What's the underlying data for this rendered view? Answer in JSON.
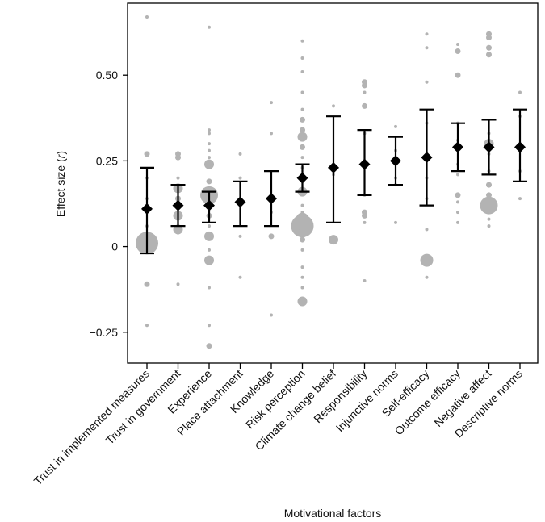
{
  "chart_data": {
    "type": "scatter",
    "title": "",
    "xlabel": "Motivational factors",
    "ylabel": {
      "prefix": "Effect size (",
      "symbol": "r",
      "suffix": ")"
    },
    "ylim": [
      -0.34,
      0.71
    ],
    "yticks": [
      -0.25,
      0,
      0.25,
      0.5
    ],
    "ytick_labels": [
      "−0.25",
      "0",
      "0.25",
      "0.50"
    ],
    "grid": false,
    "colors": {
      "summary": "#000000",
      "studies": "#b3b3b3"
    },
    "categories": [
      "Trust in implemented measures",
      "Trust in government",
      "Experience",
      "Place attachment",
      "Knowledge",
      "Risk perception",
      "Climate change belief",
      "Responsibility",
      "Injunctive norms",
      "Self-efficacy",
      "Outcome efficacy",
      "Negative affect",
      "Descriptive norms"
    ],
    "summary": [
      {
        "estimate": 0.11,
        "ci_low": -0.02,
        "ci_high": 0.23
      },
      {
        "estimate": 0.12,
        "ci_low": 0.06,
        "ci_high": 0.18
      },
      {
        "estimate": 0.12,
        "ci_low": 0.07,
        "ci_high": 0.16
      },
      {
        "estimate": 0.13,
        "ci_low": 0.06,
        "ci_high": 0.19
      },
      {
        "estimate": 0.14,
        "ci_low": 0.06,
        "ci_high": 0.22
      },
      {
        "estimate": 0.2,
        "ci_low": 0.16,
        "ci_high": 0.24
      },
      {
        "estimate": 0.23,
        "ci_low": 0.07,
        "ci_high": 0.38
      },
      {
        "estimate": 0.24,
        "ci_low": 0.15,
        "ci_high": 0.34
      },
      {
        "estimate": 0.25,
        "ci_low": 0.18,
        "ci_high": 0.32
      },
      {
        "estimate": 0.26,
        "ci_low": 0.12,
        "ci_high": 0.4
      },
      {
        "estimate": 0.29,
        "ci_low": 0.22,
        "ci_high": 0.36
      },
      {
        "estimate": 0.29,
        "ci_low": 0.21,
        "ci_high": 0.37
      },
      {
        "estimate": 0.29,
        "ci_low": 0.19,
        "ci_high": 0.4
      }
    ],
    "studies": [
      [
        {
          "r": 0.67,
          "w": 1
        },
        {
          "r": 0.27,
          "w": 2
        },
        {
          "r": 0.2,
          "w": 1
        },
        {
          "r": 0.14,
          "w": 1
        },
        {
          "r": 0.06,
          "w": 1
        },
        {
          "r": 0.01,
          "w": 6
        },
        {
          "r": -0.11,
          "w": 2
        },
        {
          "r": -0.23,
          "w": 1
        }
      ],
      [
        {
          "r": 0.27,
          "w": 2
        },
        {
          "r": 0.26,
          "w": 2
        },
        {
          "r": 0.2,
          "w": 1
        },
        {
          "r": 0.17,
          "w": 3
        },
        {
          "r": 0.14,
          "w": 2
        },
        {
          "r": 0.12,
          "w": 1
        },
        {
          "r": 0.09,
          "w": 3
        },
        {
          "r": 0.05,
          "w": 3
        },
        {
          "r": 0.04,
          "w": 1
        },
        {
          "r": -0.11,
          "w": 1
        }
      ],
      [
        {
          "r": 0.64,
          "w": 1
        },
        {
          "r": 0.34,
          "w": 1
        },
        {
          "r": 0.33,
          "w": 1
        },
        {
          "r": 0.3,
          "w": 1
        },
        {
          "r": 0.28,
          "w": 1
        },
        {
          "r": 0.26,
          "w": 1
        },
        {
          "r": 0.24,
          "w": 3
        },
        {
          "r": 0.19,
          "w": 2
        },
        {
          "r": 0.15,
          "w": 5
        },
        {
          "r": 0.09,
          "w": 2
        },
        {
          "r": 0.06,
          "w": 1
        },
        {
          "r": 0.03,
          "w": 3
        },
        {
          "r": -0.01,
          "w": 1
        },
        {
          "r": -0.04,
          "w": 3
        },
        {
          "r": -0.12,
          "w": 1
        },
        {
          "r": -0.23,
          "w": 1
        },
        {
          "r": -0.29,
          "w": 2
        }
      ],
      [
        {
          "r": 0.27,
          "w": 1
        },
        {
          "r": 0.2,
          "w": 1
        },
        {
          "r": 0.13,
          "w": 1
        },
        {
          "r": 0.03,
          "w": 1
        },
        {
          "r": -0.09,
          "w": 1
        }
      ],
      [
        {
          "r": 0.42,
          "w": 1
        },
        {
          "r": 0.33,
          "w": 1
        },
        {
          "r": 0.15,
          "w": 1
        },
        {
          "r": 0.1,
          "w": 1
        },
        {
          "r": 0.03,
          "w": 2
        },
        {
          "r": -0.2,
          "w": 1
        }
      ],
      [
        {
          "r": 0.6,
          "w": 1
        },
        {
          "r": 0.55,
          "w": 1
        },
        {
          "r": 0.51,
          "w": 1
        },
        {
          "r": 0.45,
          "w": 1
        },
        {
          "r": 0.4,
          "w": 1
        },
        {
          "r": 0.37,
          "w": 2
        },
        {
          "r": 0.34,
          "w": 2
        },
        {
          "r": 0.32,
          "w": 3
        },
        {
          "r": 0.29,
          "w": 2
        },
        {
          "r": 0.26,
          "w": 1
        },
        {
          "r": 0.23,
          "w": 1
        },
        {
          "r": 0.19,
          "w": 1
        },
        {
          "r": 0.16,
          "w": 3
        },
        {
          "r": 0.12,
          "w": 1
        },
        {
          "r": 0.1,
          "w": 1
        },
        {
          "r": 0.08,
          "w": 4
        },
        {
          "r": 0.06,
          "w": 6
        },
        {
          "r": 0.04,
          "w": 3
        },
        {
          "r": 0.02,
          "w": 2
        },
        {
          "r": -0.01,
          "w": 1
        },
        {
          "r": -0.06,
          "w": 1
        },
        {
          "r": -0.09,
          "w": 1
        },
        {
          "r": -0.12,
          "w": 1
        },
        {
          "r": -0.16,
          "w": 3
        }
      ],
      [
        {
          "r": 0.41,
          "w": 1
        },
        {
          "r": 0.21,
          "w": 1
        },
        {
          "r": 0.02,
          "w": 3
        }
      ],
      [
        {
          "r": 0.48,
          "w": 2
        },
        {
          "r": 0.47,
          "w": 2
        },
        {
          "r": 0.45,
          "w": 1
        },
        {
          "r": 0.41,
          "w": 2
        },
        {
          "r": 0.33,
          "w": 1
        },
        {
          "r": 0.25,
          "w": 1
        },
        {
          "r": 0.15,
          "w": 1
        },
        {
          "r": 0.1,
          "w": 2
        },
        {
          "r": 0.09,
          "w": 2
        },
        {
          "r": 0.07,
          "w": 1
        },
        {
          "r": -0.1,
          "w": 1
        }
      ],
      [
        {
          "r": 0.35,
          "w": 1
        },
        {
          "r": 0.28,
          "w": 1
        },
        {
          "r": 0.2,
          "w": 1
        },
        {
          "r": 0.18,
          "w": 1
        },
        {
          "r": 0.07,
          "w": 1
        }
      ],
      [
        {
          "r": 0.62,
          "w": 1
        },
        {
          "r": 0.58,
          "w": 1
        },
        {
          "r": 0.48,
          "w": 1
        },
        {
          "r": 0.36,
          "w": 1
        },
        {
          "r": 0.27,
          "w": 1
        },
        {
          "r": 0.2,
          "w": 1
        },
        {
          "r": 0.14,
          "w": 1
        },
        {
          "r": 0.05,
          "w": 1
        },
        {
          "r": -0.04,
          "w": 4
        },
        {
          "r": -0.09,
          "w": 1
        }
      ],
      [
        {
          "r": 0.59,
          "w": 1
        },
        {
          "r": 0.57,
          "w": 2
        },
        {
          "r": 0.5,
          "w": 2
        },
        {
          "r": 0.36,
          "w": 1
        },
        {
          "r": 0.31,
          "w": 1
        },
        {
          "r": 0.24,
          "w": 1
        },
        {
          "r": 0.21,
          "w": 1
        },
        {
          "r": 0.15,
          "w": 2
        },
        {
          "r": 0.13,
          "w": 1
        },
        {
          "r": 0.1,
          "w": 1
        },
        {
          "r": 0.07,
          "w": 1
        }
      ],
      [
        {
          "r": 0.62,
          "w": 2
        },
        {
          "r": 0.61,
          "w": 2
        },
        {
          "r": 0.58,
          "w": 2
        },
        {
          "r": 0.56,
          "w": 2
        },
        {
          "r": 0.33,
          "w": 1
        },
        {
          "r": 0.3,
          "w": 3
        },
        {
          "r": 0.27,
          "w": 1
        },
        {
          "r": 0.22,
          "w": 1
        },
        {
          "r": 0.18,
          "w": 2
        },
        {
          "r": 0.15,
          "w": 2
        },
        {
          "r": 0.12,
          "w": 5
        },
        {
          "r": 0.08,
          "w": 1
        },
        {
          "r": 0.06,
          "w": 1
        }
      ],
      [
        {
          "r": 0.45,
          "w": 1
        },
        {
          "r": 0.38,
          "w": 1
        },
        {
          "r": 0.22,
          "w": 1
        },
        {
          "r": 0.14,
          "w": 1
        }
      ]
    ]
  }
}
